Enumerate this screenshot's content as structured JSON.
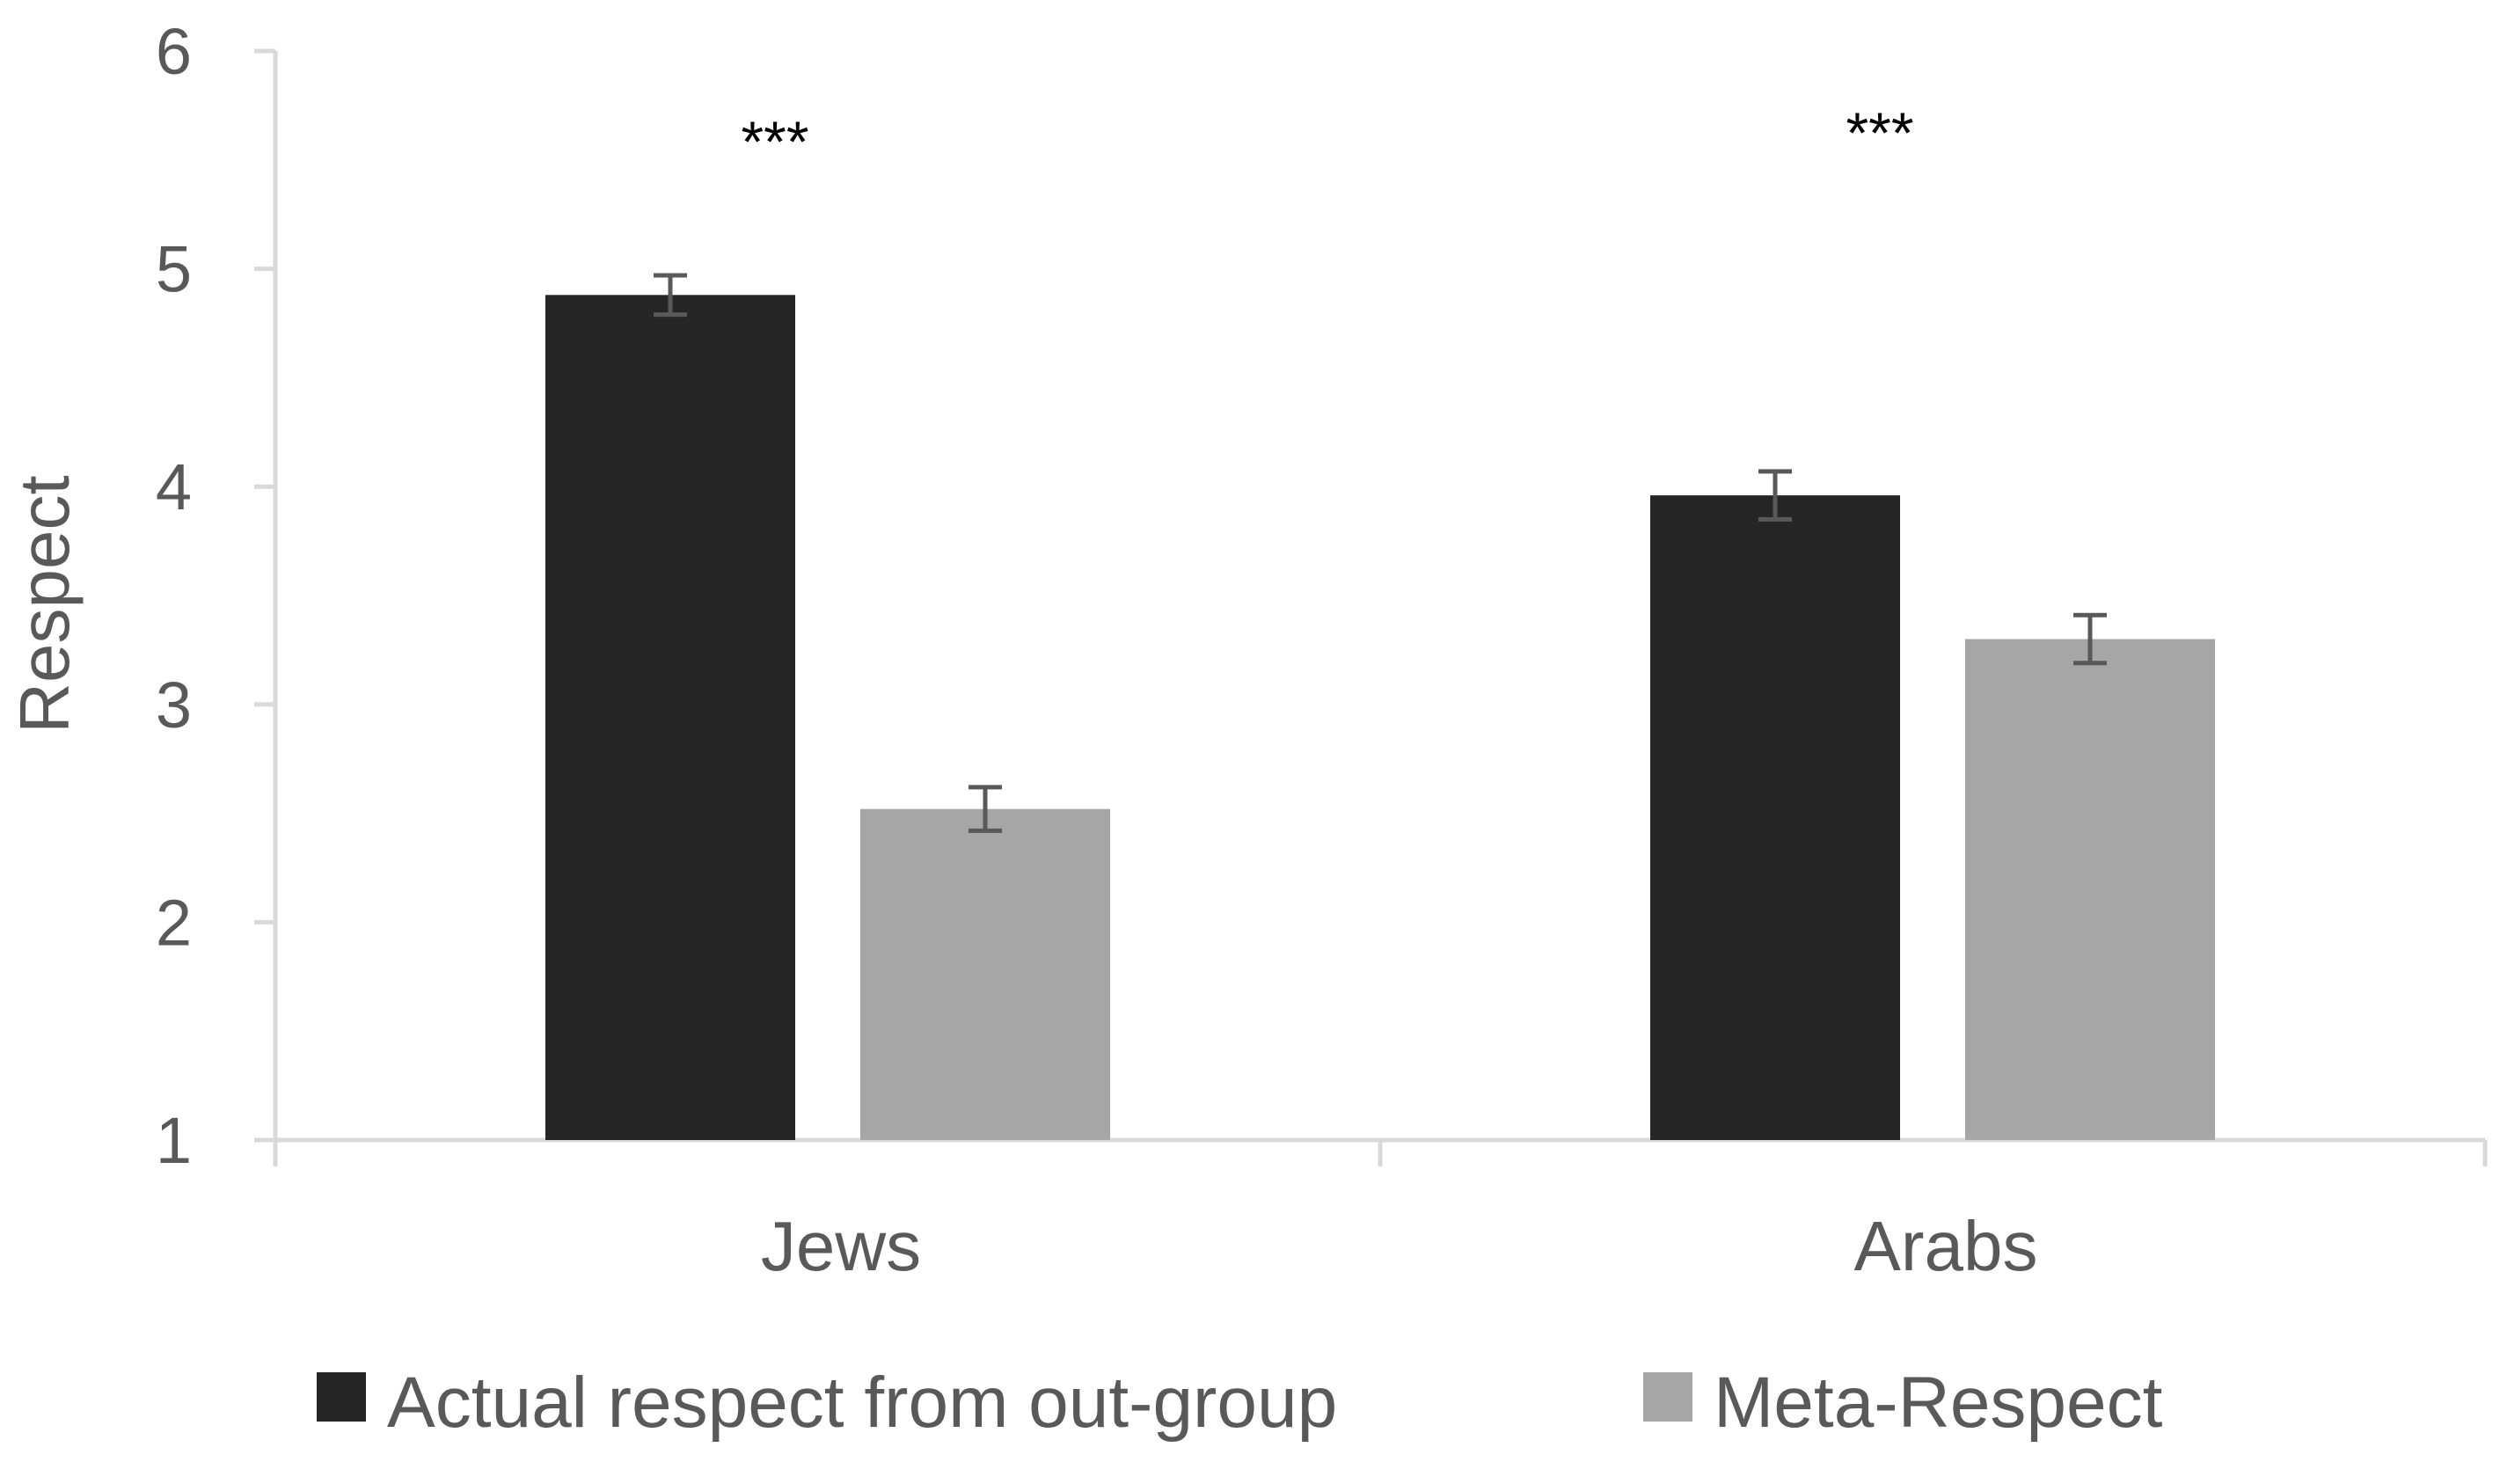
{
  "chart_data": {
    "type": "bar",
    "title": "",
    "xlabel": "",
    "ylabel": "Respect",
    "ylim": [
      1,
      6
    ],
    "yticks": [
      "1",
      "2",
      "3",
      "4",
      "5",
      "6"
    ],
    "grid": false,
    "legend_position": "bottom",
    "categories": [
      "Jews",
      "Arabs"
    ],
    "series": [
      {
        "name": "Actual respect from out-group",
        "color": "#262626",
        "values": [
          4.88,
          3.96
        ],
        "errors": [
          0.09,
          0.11
        ]
      },
      {
        "name": "Meta-Respect",
        "color": "#a6a6a6",
        "values": [
          2.52,
          3.3
        ],
        "errors": [
          0.1,
          0.11
        ]
      }
    ],
    "annotations": [
      {
        "category": "Jews",
        "text": "***"
      },
      {
        "category": "Arabs",
        "text": "***"
      }
    ],
    "axis_color": "#d9d9d9",
    "text_color": "#595959",
    "errorbar_color": "#595959"
  }
}
